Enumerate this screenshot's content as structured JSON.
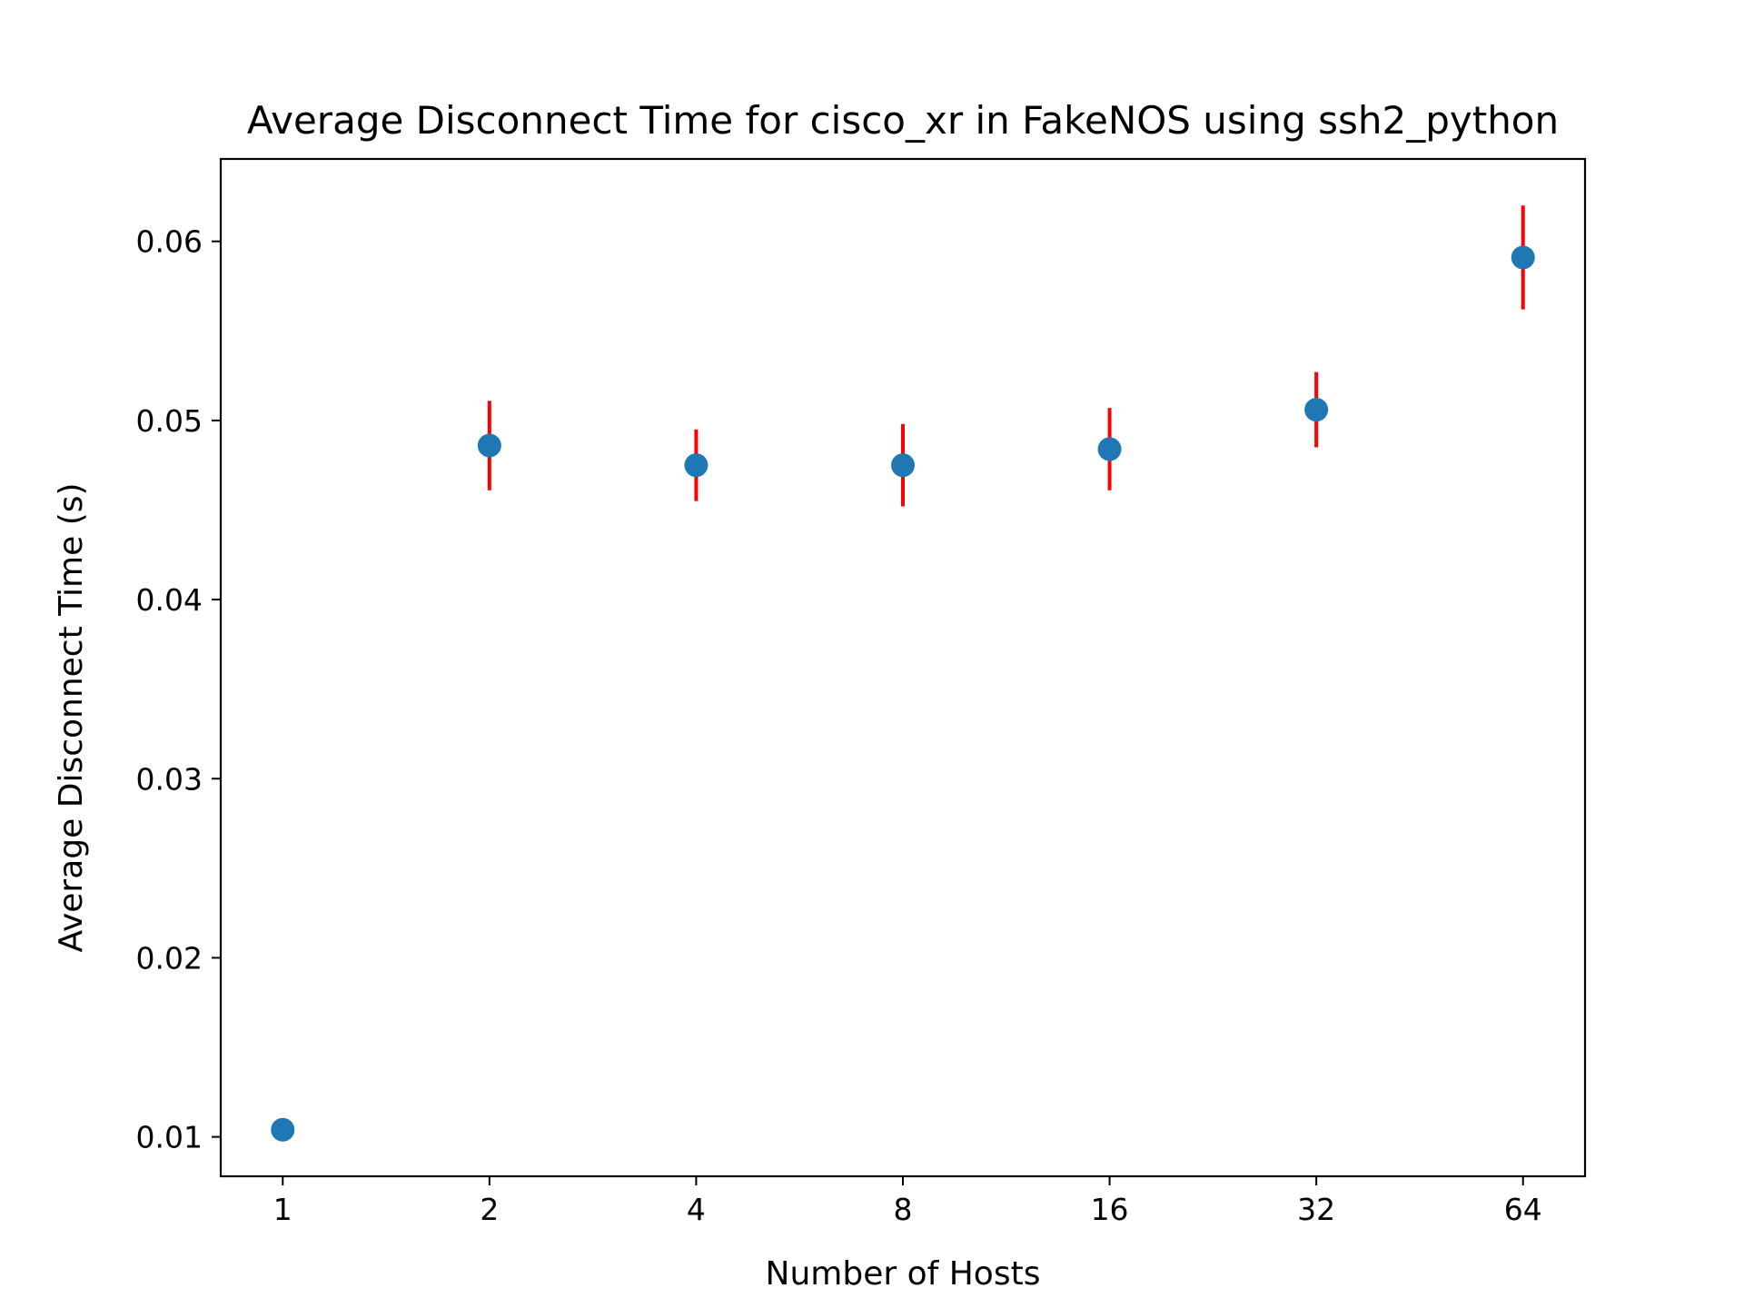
{
  "chart_data": {
    "type": "scatter",
    "title": "Average Disconnect Time for cisco_xr in FakeNOS using ssh2_python",
    "xlabel": "Number of Hosts",
    "ylabel": "Average Disconnect Time (s)",
    "x_scale": "log2",
    "x_ticks": [
      1,
      2,
      4,
      8,
      16,
      32,
      64
    ],
    "x_tick_labels": [
      "1",
      "2",
      "4",
      "8",
      "16",
      "32",
      "64"
    ],
    "y_ticks": [
      0.01,
      0.02,
      0.03,
      0.04,
      0.05,
      0.06
    ],
    "y_tick_labels": [
      "0.01",
      "0.02",
      "0.03",
      "0.04",
      "0.05",
      "0.06"
    ],
    "ylim": [
      0.0078,
      0.0646
    ],
    "grid": false,
    "points": [
      {
        "x": 1,
        "y": 0.0104,
        "err": 0.0
      },
      {
        "x": 2,
        "y": 0.0486,
        "err": 0.0025
      },
      {
        "x": 4,
        "y": 0.0475,
        "err": 0.002
      },
      {
        "x": 8,
        "y": 0.0475,
        "err": 0.0023
      },
      {
        "x": 16,
        "y": 0.0484,
        "err": 0.0023
      },
      {
        "x": 32,
        "y": 0.0506,
        "err": 0.0021
      },
      {
        "x": 64,
        "y": 0.0591,
        "err": 0.0029
      }
    ],
    "marker_color": "#1f77b4",
    "error_color": "#ff0000"
  }
}
